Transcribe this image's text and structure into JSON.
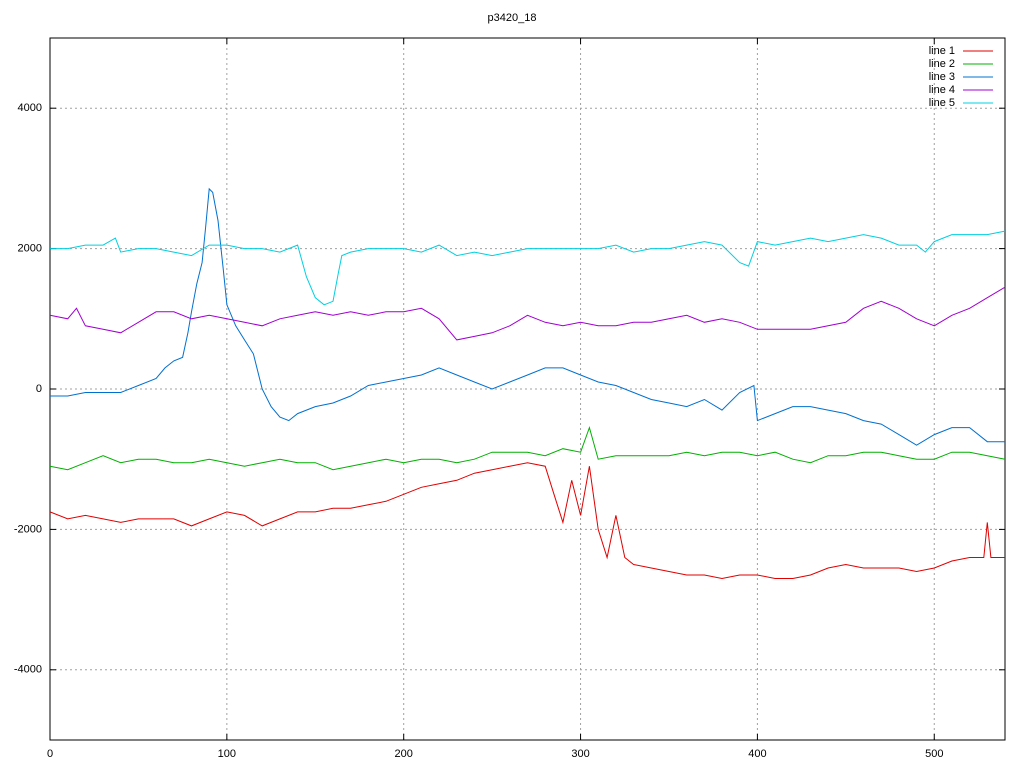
{
  "chart_data": {
    "type": "line",
    "title": "p3420_18",
    "xlim": [
      0,
      540
    ],
    "xticks": [
      0,
      100,
      200,
      300,
      400,
      500
    ],
    "ylim": [
      -5000,
      5000
    ],
    "yticks": [
      -4000,
      -2000,
      0,
      2000,
      4000
    ],
    "grid": true,
    "legend": "top-right",
    "series": [
      {
        "name": "line 1",
        "color": "#e00000",
        "x": [
          0,
          10,
          20,
          30,
          40,
          50,
          60,
          70,
          80,
          90,
          100,
          110,
          120,
          130,
          140,
          150,
          160,
          170,
          180,
          190,
          200,
          210,
          220,
          230,
          240,
          250,
          260,
          270,
          280,
          285,
          290,
          295,
          300,
          305,
          310,
          315,
          320,
          325,
          330,
          340,
          350,
          360,
          370,
          380,
          390,
          400,
          410,
          420,
          430,
          440,
          450,
          460,
          470,
          480,
          490,
          500,
          510,
          520,
          528,
          530,
          532,
          540
        ],
        "values": [
          -1750,
          -1850,
          -1800,
          -1850,
          -1900,
          -1850,
          -1850,
          -1850,
          -1950,
          -1850,
          -1750,
          -1800,
          -1950,
          -1850,
          -1750,
          -1750,
          -1700,
          -1700,
          -1650,
          -1600,
          -1500,
          -1400,
          -1350,
          -1300,
          -1200,
          -1150,
          -1100,
          -1050,
          -1100,
          -1500,
          -1900,
          -1300,
          -1800,
          -1100,
          -2000,
          -2400,
          -1800,
          -2400,
          -2500,
          -2550,
          -2600,
          -2650,
          -2650,
          -2700,
          -2650,
          -2650,
          -2700,
          -2700,
          -2650,
          -2550,
          -2500,
          -2550,
          -2550,
          -2550,
          -2600,
          -2550,
          -2450,
          -2400,
          -2400,
          -1900,
          -2400,
          -2400
        ]
      },
      {
        "name": "line 2",
        "color": "#00b000",
        "x": [
          0,
          10,
          20,
          30,
          40,
          50,
          60,
          70,
          80,
          90,
          100,
          110,
          120,
          130,
          140,
          150,
          160,
          170,
          180,
          190,
          200,
          210,
          220,
          230,
          240,
          250,
          260,
          270,
          280,
          290,
          300,
          305,
          310,
          320,
          330,
          340,
          350,
          360,
          370,
          380,
          390,
          400,
          410,
          420,
          430,
          440,
          450,
          460,
          470,
          480,
          490,
          500,
          510,
          520,
          530,
          540
        ],
        "values": [
          -1100,
          -1150,
          -1050,
          -950,
          -1050,
          -1000,
          -1000,
          -1050,
          -1050,
          -1000,
          -1050,
          -1100,
          -1050,
          -1000,
          -1050,
          -1050,
          -1150,
          -1100,
          -1050,
          -1000,
          -1050,
          -1000,
          -1000,
          -1050,
          -1000,
          -900,
          -900,
          -900,
          -950,
          -850,
          -900,
          -550,
          -1000,
          -950,
          -950,
          -950,
          -950,
          -900,
          -950,
          -900,
          -900,
          -950,
          -900,
          -1000,
          -1050,
          -950,
          -950,
          -900,
          -900,
          -950,
          -1000,
          -1000,
          -900,
          -900,
          -950,
          -1000
        ]
      },
      {
        "name": "line 3",
        "color": "#0070d0",
        "x": [
          0,
          10,
          20,
          30,
          40,
          50,
          60,
          65,
          70,
          75,
          78,
          80,
          83,
          86,
          88,
          90,
          92,
          95,
          98,
          100,
          105,
          110,
          115,
          120,
          125,
          130,
          135,
          140,
          150,
          160,
          170,
          180,
          190,
          200,
          210,
          220,
          230,
          240,
          250,
          260,
          270,
          280,
          290,
          300,
          310,
          320,
          330,
          340,
          350,
          360,
          370,
          380,
          390,
          398,
          400,
          410,
          420,
          430,
          440,
          450,
          460,
          470,
          480,
          490,
          500,
          510,
          520,
          530,
          540
        ],
        "values": [
          -100,
          -100,
          -50,
          -50,
          -50,
          50,
          150,
          300,
          400,
          450,
          800,
          1100,
          1500,
          1800,
          2300,
          2850,
          2800,
          2400,
          1700,
          1200,
          900,
          700,
          500,
          0,
          -250,
          -400,
          -450,
          -350,
          -250,
          -200,
          -100,
          50,
          100,
          150,
          200,
          300,
          200,
          100,
          0,
          100,
          200,
          300,
          300,
          200,
          100,
          50,
          -50,
          -150,
          -200,
          -250,
          -150,
          -300,
          -50,
          50,
          -450,
          -350,
          -250,
          -250,
          -300,
          -350,
          -450,
          -500,
          -650,
          -800,
          -650,
          -550,
          -550,
          -750,
          -750
        ]
      },
      {
        "name": "line 4",
        "color": "#a000d0",
        "x": [
          0,
          10,
          15,
          20,
          30,
          40,
          50,
          60,
          70,
          80,
          90,
          100,
          110,
          120,
          130,
          140,
          150,
          160,
          170,
          180,
          190,
          200,
          210,
          220,
          230,
          240,
          250,
          260,
          270,
          280,
          290,
          300,
          310,
          320,
          330,
          340,
          350,
          360,
          370,
          380,
          390,
          400,
          410,
          420,
          430,
          440,
          450,
          460,
          470,
          480,
          490,
          500,
          510,
          520,
          530,
          540
        ],
        "values": [
          1050,
          1000,
          1150,
          900,
          850,
          800,
          950,
          1100,
          1100,
          1000,
          1050,
          1000,
          950,
          900,
          1000,
          1050,
          1100,
          1050,
          1100,
          1050,
          1100,
          1100,
          1150,
          1000,
          700,
          750,
          800,
          900,
          1050,
          950,
          900,
          950,
          900,
          900,
          950,
          950,
          1000,
          1050,
          950,
          1000,
          950,
          850,
          850,
          850,
          850,
          900,
          950,
          1150,
          1250,
          1150,
          1000,
          900,
          1050,
          1150,
          1300,
          1450
        ]
      },
      {
        "name": "line 5",
        "color": "#00d0e0",
        "x": [
          0,
          10,
          20,
          30,
          37,
          40,
          50,
          60,
          70,
          80,
          90,
          100,
          110,
          120,
          130,
          140,
          145,
          150,
          155,
          160,
          163,
          165,
          170,
          180,
          190,
          200,
          210,
          220,
          230,
          240,
          250,
          260,
          270,
          280,
          290,
          300,
          310,
          320,
          330,
          340,
          350,
          360,
          370,
          380,
          390,
          395,
          400,
          410,
          420,
          430,
          440,
          450,
          460,
          470,
          480,
          490,
          495,
          500,
          510,
          520,
          530,
          540
        ],
        "values": [
          2000,
          2000,
          2050,
          2050,
          2150,
          1950,
          2000,
          2000,
          1950,
          1900,
          2050,
          2050,
          2000,
          2000,
          1950,
          2050,
          1600,
          1300,
          1200,
          1250,
          1650,
          1900,
          1950,
          2000,
          2000,
          2000,
          1950,
          2050,
          1900,
          1950,
          1900,
          1950,
          2000,
          2000,
          2000,
          2000,
          2000,
          2050,
          1950,
          2000,
          2000,
          2050,
          2100,
          2050,
          1800,
          1750,
          2100,
          2050,
          2100,
          2150,
          2100,
          2150,
          2200,
          2150,
          2050,
          2050,
          1950,
          2100,
          2200,
          2200,
          2200,
          2250
        ]
      }
    ]
  }
}
